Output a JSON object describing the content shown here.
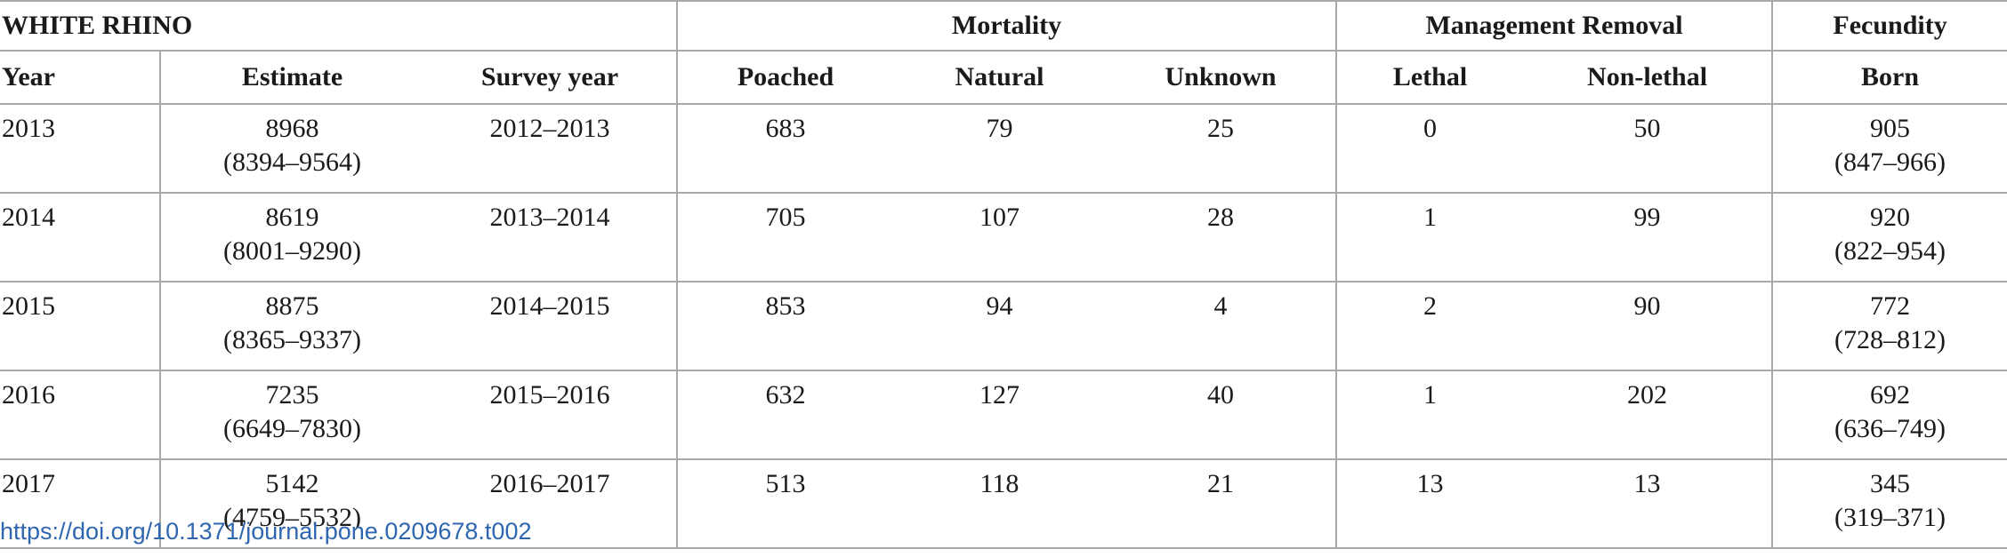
{
  "table": {
    "group_headers": {
      "species": "WHITE RHINO",
      "mortality": "Mortality",
      "management_removal": "Management Removal",
      "fecundity": "Fecundity"
    },
    "column_headers": {
      "year": "Year",
      "estimate": "Estimate",
      "survey_year": "Survey year",
      "poached": "Poached",
      "natural": "Natural",
      "unknown": "Unknown",
      "lethal": "Lethal",
      "non_lethal": "Non-lethal",
      "born": "Born"
    },
    "rows": [
      {
        "year": "2013",
        "estimate": "8968",
        "estimate_ci": "(8394–9564)",
        "survey_year": "2012–2013",
        "poached": "683",
        "natural": "79",
        "unknown": "25",
        "lethal": "0",
        "non_lethal": "50",
        "born": "905",
        "born_ci": "(847–966)"
      },
      {
        "year": "2014",
        "estimate": "8619",
        "estimate_ci": "(8001–9290)",
        "survey_year": "2013–2014",
        "poached": "705",
        "natural": "107",
        "unknown": "28",
        "lethal": "1",
        "non_lethal": "99",
        "born": "920",
        "born_ci": "(822–954)"
      },
      {
        "year": "2015",
        "estimate": "8875",
        "estimate_ci": "(8365–9337)",
        "survey_year": "2014–2015",
        "poached": "853",
        "natural": "94",
        "unknown": "4",
        "lethal": "2",
        "non_lethal": "90",
        "born": "772",
        "born_ci": "(728–812)"
      },
      {
        "year": "2016",
        "estimate": "7235",
        "estimate_ci": "(6649–7830)",
        "survey_year": "2015–2016",
        "poached": "632",
        "natural": "127",
        "unknown": "40",
        "lethal": "1",
        "non_lethal": "202",
        "born": "692",
        "born_ci": "(636–749)"
      },
      {
        "year": "2017",
        "estimate": "5142",
        "estimate_ci": "(4759–5532)",
        "survey_year": "2016–2017",
        "poached": "513",
        "natural": "118",
        "unknown": "21",
        "lethal": "13",
        "non_lethal": "13",
        "born": "345",
        "born_ci": "(319–371)"
      }
    ]
  },
  "footer": {
    "doi_text": "https://doi.org/10.1371/journal.pone.0209678.t002"
  }
}
